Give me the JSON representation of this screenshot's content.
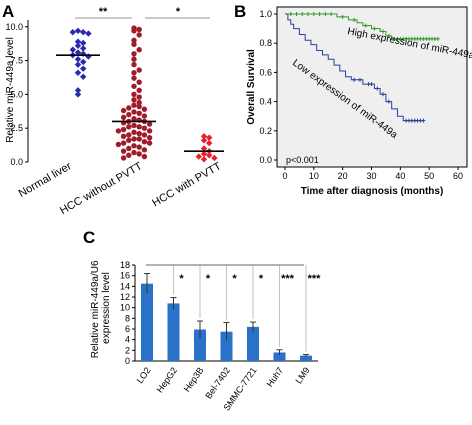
{
  "panels": {
    "A": "A",
    "B": "B",
    "C": "C"
  },
  "chart_data": [
    {
      "type": "scatter",
      "panel": "A",
      "ylabel": "Relative miR-449a level",
      "ylim": [
        0,
        10.5
      ],
      "yticks": [
        "0.0",
        "2.5",
        "5.0",
        "7.5",
        "10.0"
      ],
      "categories": [
        "Normal liver",
        "HCC without PVTT",
        "HCC with PVTT"
      ],
      "colors": [
        "#2a2ab0",
        "#a01c2a",
        "#e8202a"
      ],
      "markers": [
        "diamond",
        "circle",
        "diamond"
      ],
      "means": [
        7.9,
        3.0,
        0.8
      ],
      "points": [
        [
          9.7,
          9.6,
          9.6,
          9.5,
          8.9,
          8.8,
          8.6,
          8.4,
          8.3,
          8.1,
          8.0,
          7.9,
          7.8,
          7.6,
          7.4,
          7.2,
          6.9,
          6.6,
          6.3,
          5.3,
          5.0
        ],
        [
          9.9,
          9.8,
          9.7,
          9.4,
          9.0,
          8.7,
          8.3,
          8.0,
          7.6,
          7.2,
          6.8,
          6.6,
          6.2,
          5.9,
          5.6,
          5.3,
          5.0,
          4.8,
          4.6,
          4.4,
          4.2,
          4.1,
          4.0,
          3.9,
          3.8,
          3.7,
          3.6,
          3.5,
          3.4,
          3.3,
          3.2,
          3.1,
          3.0,
          3.0,
          2.9,
          2.8,
          2.7,
          2.6,
          2.6,
          2.5,
          2.4,
          2.3,
          2.3,
          2.2,
          2.1,
          2.0,
          2.0,
          1.9,
          1.8,
          1.7,
          1.7,
          1.6,
          1.5,
          1.4,
          1.4,
          1.3,
          1.2,
          1.1,
          1.0,
          0.9,
          0.8,
          0.7,
          0.6,
          0.5,
          0.4,
          0.3
        ],
        [
          1.9,
          1.8,
          1.6,
          1.4,
          1.0,
          0.8,
          0.6,
          0.5,
          0.4,
          0.3,
          0.2
        ]
      ],
      "annotations": [
        {
          "between": [
            0,
            1
          ],
          "text": "**"
        },
        {
          "between": [
            1,
            2
          ],
          "text": "*"
        }
      ]
    },
    {
      "type": "line",
      "panel": "B",
      "xlabel": "Time after diagnosis (months)",
      "ylabel": "Overall Survival",
      "xlim": [
        0,
        60
      ],
      "ylim": [
        0,
        1.0
      ],
      "xticks": [
        0,
        10,
        20,
        30,
        40,
        50,
        60
      ],
      "yticks": [
        "0.0",
        "0.2",
        "0.4",
        "0.6",
        "0.8",
        "1.0"
      ],
      "note": "p<0.001",
      "series": [
        {
          "name": "High expression of miR-449a",
          "color": "#2e9a2e",
          "steps": [
            [
              0,
              1.0
            ],
            [
              18,
              1.0
            ],
            [
              18,
              0.98
            ],
            [
              22,
              0.98
            ],
            [
              22,
              0.96
            ],
            [
              25,
              0.96
            ],
            [
              25,
              0.94
            ],
            [
              27,
              0.94
            ],
            [
              27,
              0.92
            ],
            [
              30,
              0.92
            ],
            [
              30,
              0.9
            ],
            [
              33,
              0.9
            ],
            [
              33,
              0.88
            ],
            [
              35,
              0.88
            ],
            [
              35,
              0.85
            ],
            [
              37,
              0.85
            ],
            [
              37,
              0.83
            ],
            [
              53,
              0.83
            ]
          ],
          "censor_x": [
            2,
            4,
            6,
            8,
            10,
            12,
            14,
            16,
            20,
            24,
            28,
            31,
            34,
            36,
            38,
            39,
            40,
            41,
            42,
            43,
            44,
            45,
            46,
            47,
            48,
            49,
            50,
            51,
            52,
            53
          ]
        },
        {
          "name": "Low expression of miR-449a",
          "color": "#2a3f9e",
          "steps": [
            [
              0,
              1.0
            ],
            [
              1,
              1.0
            ],
            [
              1,
              0.96
            ],
            [
              2,
              0.96
            ],
            [
              2,
              0.93
            ],
            [
              3,
              0.93
            ],
            [
              3,
              0.9
            ],
            [
              5,
              0.9
            ],
            [
              5,
              0.86
            ],
            [
              7,
              0.86
            ],
            [
              7,
              0.82
            ],
            [
              9,
              0.82
            ],
            [
              9,
              0.79
            ],
            [
              11,
              0.79
            ],
            [
              11,
              0.75
            ],
            [
              13,
              0.75
            ],
            [
              13,
              0.72
            ],
            [
              15,
              0.72
            ],
            [
              15,
              0.69
            ],
            [
              17,
              0.69
            ],
            [
              17,
              0.65
            ],
            [
              19,
              0.65
            ],
            [
              19,
              0.61
            ],
            [
              21,
              0.61
            ],
            [
              21,
              0.57
            ],
            [
              23,
              0.57
            ],
            [
              23,
              0.55
            ],
            [
              27,
              0.55
            ],
            [
              27,
              0.52
            ],
            [
              31,
              0.52
            ],
            [
              31,
              0.49
            ],
            [
              33,
              0.49
            ],
            [
              33,
              0.45
            ],
            [
              35,
              0.45
            ],
            [
              35,
              0.4
            ],
            [
              37,
              0.4
            ],
            [
              37,
              0.35
            ],
            [
              39,
              0.35
            ],
            [
              39,
              0.3
            ],
            [
              41,
              0.3
            ],
            [
              41,
              0.27
            ],
            [
              48,
              0.27
            ]
          ],
          "censor_x": [
            24,
            26,
            29,
            30,
            32,
            34,
            36,
            42,
            43,
            44,
            45,
            46,
            47,
            48
          ]
        }
      ]
    },
    {
      "type": "bar",
      "panel": "C",
      "ylabel": "Relative miR-449a/U6 expression level",
      "ylim": [
        0,
        18
      ],
      "yticks": [
        0,
        2,
        4,
        6,
        8,
        10,
        12,
        14,
        16,
        18
      ],
      "categories": [
        "LO2",
        "HepG2",
        "Hep3B",
        "Bel-7402",
        "SMMC-7721",
        "Huh7",
        "LM9"
      ],
      "values": [
        14.5,
        10.8,
        5.9,
        5.5,
        6.4,
        1.6,
        1.0
      ],
      "errors": [
        1.9,
        1.1,
        1.6,
        1.7,
        0.9,
        0.5,
        0.2
      ],
      "stars": [
        "",
        "*",
        "*",
        "*",
        "*",
        "***",
        "***"
      ],
      "color": "#2a72c8"
    }
  ]
}
